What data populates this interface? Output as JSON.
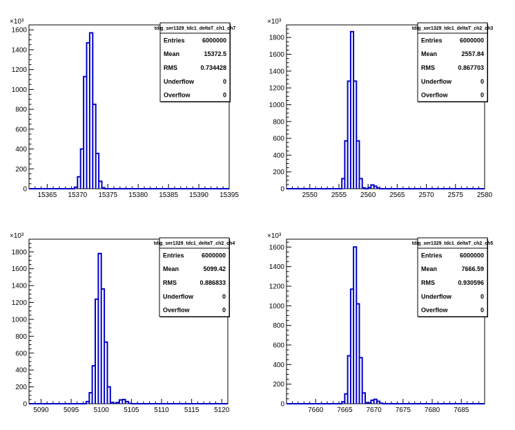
{
  "chart_data": [
    {
      "type": "histogram",
      "name": "tdig_ser1329_tdc1_deltaT_ch1_ch7",
      "xlim": [
        15362,
        15395
      ],
      "ylim": [
        0,
        1650
      ],
      "y_multiplier_label": "×10³",
      "x_ticks": [
        "15365",
        "15370",
        "15375",
        "15380",
        "15385",
        "15390",
        "15395"
      ],
      "y_ticks": [
        "0",
        "200",
        "400",
        "600",
        "800",
        "1000",
        "1200",
        "1400",
        "1600"
      ],
      "bin_width": 0.5,
      "bins": [
        [
          15369.5,
          15
        ],
        [
          15370.0,
          120
        ],
        [
          15370.5,
          400
        ],
        [
          15371.0,
          1130
        ],
        [
          15371.5,
          1470
        ],
        [
          15372.0,
          1570
        ],
        [
          15372.5,
          850
        ],
        [
          15373.0,
          355
        ],
        [
          15373.5,
          75
        ],
        [
          15374.0,
          10
        ]
      ],
      "stats": {
        "title": "tdig_ser1329_tdc1_deltaT_ch1_ch7",
        "rows": [
          [
            "Entries",
            "6000000"
          ],
          [
            "Mean",
            "15372.5"
          ],
          [
            "RMS",
            "0.734428"
          ],
          [
            "Underflow",
            "0"
          ],
          [
            "Overflow",
            "0"
          ]
        ]
      }
    },
    {
      "type": "histogram",
      "name": "tdig_ser1329_tdc1_deltaT_ch2_ch3",
      "xlim": [
        2546,
        2580
      ],
      "ylim": [
        0,
        1950
      ],
      "y_multiplier_label": "×10³",
      "x_ticks": [
        "2550",
        "2555",
        "2560",
        "2565",
        "2570",
        "2575",
        "2580"
      ],
      "y_ticks": [
        "0",
        "200",
        "400",
        "600",
        "800",
        "1000",
        "1200",
        "1400",
        "1600",
        "1800"
      ],
      "bin_width": 0.5,
      "bins": [
        [
          2555.5,
          120
        ],
        [
          2556.0,
          570
        ],
        [
          2556.5,
          1280
        ],
        [
          2557.0,
          1870
        ],
        [
          2557.5,
          1280
        ],
        [
          2558.0,
          570
        ],
        [
          2558.5,
          120
        ],
        [
          2559.0,
          10
        ],
        [
          2560.0,
          15
        ],
        [
          2560.5,
          45
        ],
        [
          2561.0,
          30
        ],
        [
          2561.5,
          8
        ]
      ],
      "stats": {
        "title": "tdig_ser1329_tdc1_deltaT_ch2_ch3",
        "rows": [
          [
            "Entries",
            "6000000"
          ],
          [
            "Mean",
            "2557.84"
          ],
          [
            "RMS",
            "0.867703"
          ],
          [
            "Underflow",
            "0"
          ],
          [
            "Overflow",
            "0"
          ]
        ]
      }
    },
    {
      "type": "histogram",
      "name": "tdig_ser1329_tdc1_deltaT_ch2_ch4",
      "xlim": [
        5088,
        5121
      ],
      "ylim": [
        0,
        1950
      ],
      "y_multiplier_label": "×10³",
      "x_ticks": [
        "5090",
        "5095",
        "5100",
        "5105",
        "5110",
        "5115",
        "5120"
      ],
      "y_ticks": [
        "0",
        "200",
        "400",
        "600",
        "800",
        "1000",
        "1200",
        "1400",
        "1600",
        "1800"
      ],
      "bin_width": 0.5,
      "bins": [
        [
          5097.5,
          25
        ],
        [
          5098.0,
          130
        ],
        [
          5098.5,
          450
        ],
        [
          5099.0,
          1240
        ],
        [
          5099.5,
          1780
        ],
        [
          5100.0,
          1360
        ],
        [
          5100.5,
          730
        ],
        [
          5101.0,
          200
        ],
        [
          5101.5,
          15
        ],
        [
          5102.0,
          5
        ],
        [
          5102.5,
          15
        ],
        [
          5103.0,
          45
        ],
        [
          5103.5,
          50
        ],
        [
          5104.0,
          25
        ],
        [
          5104.5,
          5
        ]
      ],
      "stats": {
        "title": "tdig_ser1329_tdc1_deltaT_ch2_ch4",
        "rows": [
          [
            "Entries",
            "6000000"
          ],
          [
            "Mean",
            "5099.42"
          ],
          [
            "RMS",
            "0.886833"
          ],
          [
            "Underflow",
            "0"
          ],
          [
            "Overflow",
            "0"
          ]
        ]
      }
    },
    {
      "type": "histogram",
      "name": "tdig_ser1329_tdc1_deltaT_ch2_ch5",
      "xlim": [
        7655,
        7689
      ],
      "ylim": [
        0,
        1680
      ],
      "y_multiplier_label": "×10³",
      "x_ticks": [
        "7660",
        "7665",
        "7670",
        "7675",
        "7680",
        "7685"
      ],
      "y_ticks": [
        "0",
        "200",
        "400",
        "600",
        "800",
        "1000",
        "1200",
        "1400",
        "1600"
      ],
      "bin_width": 0.5,
      "bins": [
        [
          7664.5,
          20
        ],
        [
          7665.0,
          100
        ],
        [
          7665.5,
          490
        ],
        [
          7666.0,
          1170
        ],
        [
          7666.5,
          1600
        ],
        [
          7667.0,
          1020
        ],
        [
          7667.5,
          470
        ],
        [
          7668.0,
          110
        ],
        [
          7668.5,
          10
        ],
        [
          7669.0,
          10
        ],
        [
          7669.5,
          35
        ],
        [
          7670.0,
          45
        ],
        [
          7670.5,
          25
        ],
        [
          7671.0,
          5
        ]
      ],
      "stats": {
        "title": "tdig_ser1329_tdc1_deltaT_ch2_ch5",
        "rows": [
          [
            "Entries",
            "6000000"
          ],
          [
            "Mean",
            "7666.59"
          ],
          [
            "RMS",
            "0.930596"
          ],
          [
            "Underflow",
            "0"
          ],
          [
            "Overflow",
            "0"
          ]
        ]
      }
    }
  ],
  "colors": {
    "line": "#0000cc",
    "frame": "#000000",
    "background": "#ffffff"
  }
}
